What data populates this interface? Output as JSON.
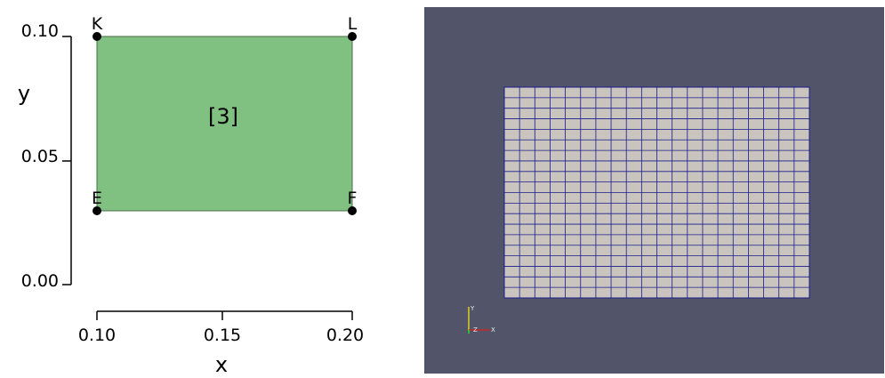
{
  "diagram": {
    "x_axis": {
      "label": "x",
      "ticks": [
        "0.10",
        "0.15",
        "0.20"
      ],
      "range": [
        0.1,
        0.2
      ]
    },
    "y_axis": {
      "label": "y",
      "ticks": [
        "0.00",
        "0.05",
        "0.10"
      ],
      "range": [
        0.0,
        0.1
      ]
    },
    "block": {
      "label": "[3]",
      "fill": "#80c080",
      "edge": "#4a6b4a"
    },
    "points": [
      {
        "name": "K",
        "x": 0.1,
        "y": 0.1
      },
      {
        "name": "L",
        "x": 0.2,
        "y": 0.1
      },
      {
        "name": "E",
        "x": 0.1,
        "y": 0.03
      },
      {
        "name": "F",
        "x": 0.2,
        "y": 0.03
      }
    ]
  },
  "viewer": {
    "background": "#525569",
    "mesh": {
      "columns": 20,
      "rows": 20,
      "fill": "#c9c4be",
      "line": "#1c1c8c"
    },
    "orientation_axes": {
      "y_label": "Y",
      "z_label": "Z",
      "x_label": "X"
    }
  }
}
